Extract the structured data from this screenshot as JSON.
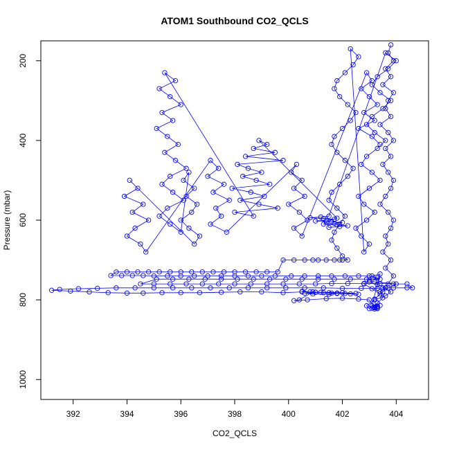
{
  "chart_data": {
    "type": "scatter",
    "title": "ATOM1 Southbound CO2_QCLS",
    "xlabel": "CO2_QCLS",
    "ylabel": "Pressure (mbar)",
    "xlim": [
      390.8,
      405.2
    ],
    "ylim": [
      1050,
      150
    ],
    "y_reversed": true,
    "grid": false,
    "legend": "none",
    "style": {
      "color": "#0000ff",
      "marker": "open-circle",
      "connected": true
    },
    "x_ticks": [
      392,
      394,
      396,
      398,
      400,
      402,
      404
    ],
    "x_tick_labels": [
      "392",
      "394",
      "396",
      "398",
      "400",
      "402",
      "404"
    ],
    "y_ticks": [
      200,
      400,
      600,
      800,
      1000
    ],
    "y_tick_labels": [
      "200",
      "400",
      "600",
      "800",
      "1000"
    ],
    "series": [
      {
        "x": [
          403.8,
          403.7,
          403.9,
          403.6,
          403.8,
          403.5,
          403.9,
          403.7,
          403.6,
          403.8,
          403.4,
          403.7,
          403.9,
          403.6,
          403.8,
          403.5,
          403.7,
          403.9,
          403.8,
          403.6,
          403.4,
          403.7,
          403.9,
          403.8,
          403.6,
          403.7,
          403.5,
          403.8,
          403.6,
          403.9,
          403.7,
          403.5,
          403.8,
          403.6,
          403.2,
          402.9,
          403.0,
          403.3,
          403.5,
          403.4,
          403.6,
          403.3,
          403.0,
          402.8,
          403.1,
          403.4,
          403.2,
          403.5,
          403.7,
          404.0,
          403.2,
          403.0,
          403.3,
          403.1,
          403.4,
          403.1,
          403.2,
          403.3,
          403.3,
          403.2,
          403.3,
          403.1,
          403.2,
          403.3,
          403.4,
          403.2,
          403.0,
          402.6,
          402.0,
          401.4,
          400.7,
          400.2,
          400.4,
          400.9,
          401.5,
          402.1,
          402.6,
          402.3,
          401.6,
          401.0,
          400.5,
          400.8,
          401.3,
          401.8,
          401.5,
          400.9,
          400.6,
          401.2,
          402.0,
          402.5,
          401.8,
          401.0,
          400.5,
          399.8,
          399.0,
          398.2,
          397.5,
          396.7,
          396.0,
          395.3,
          394.6,
          394.0,
          393.3,
          392.6,
          391.9,
          391.2,
          391.5,
          392.2,
          392.9,
          393.6,
          394.3,
          395.0,
          395.7,
          396.4,
          397.1,
          397.8,
          398.5,
          399.2,
          399.9,
          400.6,
          401.3,
          402.0,
          402.7,
          403.3,
          403.9,
          404.4,
          404.6,
          404.4,
          403.9,
          403.4,
          402.8,
          402.2,
          401.6,
          401.0,
          400.4,
          399.8,
          399.2,
          398.6,
          398.0,
          397.4,
          396.8,
          396.2,
          395.6,
          395.0,
          394.5,
          395.1,
          395.7,
          396.3,
          396.9,
          397.5,
          398.1,
          398.7,
          399.3,
          399.9,
          400.5,
          401.1,
          401.7,
          402.3,
          402.9,
          403.4,
          403.0,
          402.6,
          402.1,
          401.6,
          401.1,
          400.6,
          400.1,
          399.5,
          399.0,
          398.5,
          398.0,
          397.5,
          397.0,
          396.5,
          396.0,
          395.5,
          395.0,
          394.6,
          394.2,
          393.8,
          393.4,
          393.6,
          394.0,
          394.4,
          394.8,
          395.2,
          395.6,
          396.0,
          396.4,
          396.8,
          397.2,
          397.6,
          398.0,
          398.4,
          398.8,
          399.2,
          399.6,
          399.8,
          400.2,
          400.6,
          400.9,
          401.1,
          401.4,
          401.7,
          401.9,
          402.0,
          402.2,
          402.0,
          401.8,
          401.6,
          401.7,
          401.9,
          402.1,
          401.8,
          401.5,
          401.6,
          401.9,
          402.2,
          402.4,
          402.1,
          401.8,
          401.6,
          401.7,
          402.0,
          402.3,
          402.5,
          402.2,
          401.9,
          401.7,
          401.8,
          402.1,
          402.4,
          402.6,
          402.3,
          402.8,
          403.0,
          402.7,
          402.5,
          402.9,
          403.2,
          402.8,
          402.6,
          403.0,
          403.4,
          403.1,
          402.7,
          402.9,
          403.3,
          403.6,
          403.2,
          402.9,
          403.1,
          403.5,
          403.8,
          403.4,
          403.1,
          403.3,
          403.7,
          404.0,
          403.6,
          401.5,
          401.2,
          400.8,
          401.3,
          401.7,
          401.4,
          401.0,
          401.6,
          402.0,
          401.7,
          401.3,
          401.8,
          402.2,
          401.9,
          401.5,
          401.4,
          401.8,
          398.9,
          399.2,
          398.7,
          399.5,
          398.4,
          399.8,
          398.1,
          398.5,
          399.0,
          398.3,
          398.8,
          399.3,
          397.9,
          398.6,
          399.1,
          398.2,
          398.9,
          399.6,
          398.0,
          398.7,
          395.4,
          395.8,
          395.2,
          395.6,
          396.0,
          395.3,
          395.7,
          395.1,
          395.5,
          395.9,
          395.4,
          395.8,
          396.2,
          395.6,
          395.3,
          395.7,
          396.1,
          395.5,
          395.2,
          395.6,
          396.0,
          396.3,
          396.1,
          396.5,
          396.2,
          396.6,
          396.4,
          396.0,
          396.3,
          396.7,
          396.5,
          394.1,
          394.4,
          393.9,
          394.6,
          394.2,
          394.8,
          394.3,
          394.0,
          394.5,
          394.7,
          397.1,
          397.4,
          397.0,
          397.6,
          397.2,
          397.8,
          397.3,
          397.5,
          397.1,
          397.7,
          400.3,
          400.1,
          400.5,
          400.2,
          400.6,
          400.0,
          400.4,
          400.7,
          400.2,
          400.5,
          402.9,
          403.1,
          402.7,
          403.0,
          403.3,
          402.8,
          403.2,
          402.6,
          403.1,
          403.4
        ],
        "y": [
          160,
          180,
          200,
          220,
          240,
          260,
          280,
          300,
          320,
          340,
          360,
          380,
          400,
          420,
          440,
          460,
          480,
          500,
          520,
          540,
          560,
          580,
          600,
          620,
          640,
          660,
          680,
          700,
          720,
          740,
          760,
          770,
          780,
          790,
          800,
          815,
          822,
          808,
          795,
          780,
          770,
          762,
          755,
          760,
          772,
          785,
          798,
          780,
          770,
          760,
          755,
          750,
          745,
          740,
          735,
          815,
          818,
          820,
          822,
          819,
          816,
          821,
          823,
          817,
          814,
          820,
          800,
          798,
          796,
          797,
          800,
          802,
          800,
          780,
          782,
          784,
          786,
          785,
          783,
          781,
          779,
          780,
          782,
          784,
          786,
          785,
          783,
          781,
          782,
          784,
          783,
          781,
          780,
          782,
          780,
          780,
          781,
          782,
          782,
          782,
          783,
          783,
          782,
          780,
          778,
          776,
          774,
          772,
          771,
          770,
          770,
          770,
          770,
          770,
          770,
          770,
          770,
          770,
          770,
          770,
          770,
          771,
          771,
          771,
          770,
          770,
          770,
          760,
          760,
          759,
          759,
          759,
          759,
          760,
          760,
          760,
          760,
          760,
          760,
          760,
          760,
          760,
          760,
          760,
          760,
          748,
          748,
          748,
          748,
          748,
          748,
          748,
          748,
          748,
          748,
          748,
          748,
          748,
          748,
          748,
          740,
          740,
          740,
          740,
          740,
          740,
          740,
          740,
          740,
          740,
          740,
          740,
          740,
          740,
          740,
          740,
          740,
          739,
          739,
          739,
          739,
          730,
          730,
          730,
          730,
          730,
          730,
          730,
          730,
          730,
          730,
          730,
          730,
          730,
          730,
          730,
          730,
          700,
          700,
          700,
          700,
          700,
          700,
          700,
          700,
          700,
          700,
          690,
          670,
          650,
          630,
          610,
          590,
          570,
          550,
          530,
          510,
          490,
          470,
          450,
          430,
          410,
          390,
          370,
          350,
          330,
          310,
          290,
          270,
          250,
          230,
          210,
          190,
          170,
          680,
          660,
          640,
          620,
          600,
          580,
          560,
          540,
          520,
          500,
          480,
          460,
          440,
          420,
          400,
          380,
          360,
          340,
          320,
          300,
          280,
          260,
          240,
          220,
          200,
          180,
          590,
          592,
          594,
          596,
          598,
          600,
          602,
          604,
          606,
          608,
          610,
          612,
          614,
          616,
          618,
          605,
          595,
          400,
          410,
          420,
          430,
          440,
          450,
          460,
          470,
          480,
          490,
          500,
          510,
          520,
          530,
          540,
          550,
          560,
          570,
          580,
          590,
          230,
          250,
          270,
          290,
          310,
          330,
          350,
          370,
          390,
          410,
          430,
          450,
          470,
          490,
          510,
          530,
          550,
          570,
          590,
          610,
          630,
          480,
          500,
          520,
          540,
          560,
          580,
          600,
          620,
          640,
          660,
          500,
          520,
          540,
          560,
          580,
          600,
          620,
          640,
          660,
          680,
          450,
          470,
          490,
          510,
          530,
          550,
          570,
          590,
          610,
          630,
          460,
          480,
          500,
          520,
          540,
          560,
          580,
          600,
          620,
          640,
          230,
          250,
          270,
          290,
          310,
          330,
          350,
          370,
          390,
          410
        ]
      }
    ]
  }
}
